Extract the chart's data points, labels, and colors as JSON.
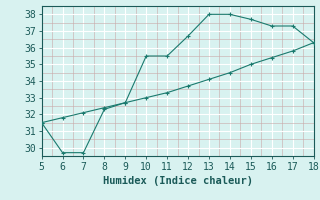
{
  "line1_x": [
    5,
    6,
    7,
    8,
    9,
    10,
    11,
    12,
    13,
    14,
    15,
    16,
    17,
    18
  ],
  "line1_y": [
    31.5,
    29.7,
    29.7,
    32.3,
    32.7,
    35.5,
    35.5,
    36.7,
    38.0,
    38.0,
    37.7,
    37.3,
    37.3,
    36.3
  ],
  "line2_x": [
    5,
    6,
    7,
    8,
    9,
    10,
    11,
    12,
    13,
    14,
    15,
    16,
    17,
    18
  ],
  "line2_y": [
    31.5,
    31.8,
    32.1,
    32.4,
    32.7,
    33.0,
    33.3,
    33.7,
    34.1,
    34.5,
    35.0,
    35.4,
    35.8,
    36.3
  ],
  "line_color": "#1a7a6e",
  "bg_color": "#d8f2f0",
  "minor_grid_color": "#c8a8a8",
  "major_grid_color": "#ffffff",
  "xlabel": "Humidex (Indice chaleur)",
  "xlim": [
    5,
    18
  ],
  "ylim": [
    29.5,
    38.5
  ],
  "xticks": [
    5,
    6,
    7,
    8,
    9,
    10,
    11,
    12,
    13,
    14,
    15,
    16,
    17,
    18
  ],
  "yticks": [
    30,
    31,
    32,
    33,
    34,
    35,
    36,
    37,
    38
  ],
  "xlabel_fontsize": 7.5,
  "tick_fontsize": 7,
  "marker_size": 2.5,
  "linewidth": 0.8
}
